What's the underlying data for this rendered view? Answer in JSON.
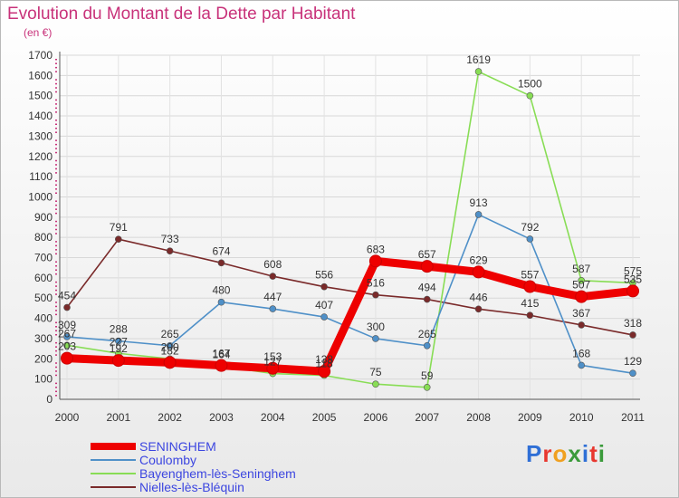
{
  "title": "Evolution du Montant de la Dette par Habitant",
  "subtitle": "(en €)",
  "brand": "Proxiti",
  "brand_colors": [
    "#2f6fd6",
    "#e8372f",
    "#f0a020",
    "#3a9a3a",
    "#2f6fd6",
    "#e8372f",
    "#3a9a3a"
  ],
  "chart_data": {
    "type": "line",
    "x": [
      "2000",
      "2001",
      "2002",
      "2003",
      "2004",
      "2005",
      "2006",
      "2007",
      "2008",
      "2009",
      "2010",
      "2011"
    ],
    "ylim": [
      0,
      1700
    ],
    "yticks": [
      0,
      100,
      200,
      300,
      400,
      500,
      600,
      700,
      800,
      900,
      1000,
      1100,
      1200,
      1300,
      1400,
      1500,
      1600,
      1700
    ],
    "grid": true,
    "legend_position": "bottom-left",
    "series": [
      {
        "name": "SENINGHEM",
        "color": "#ee0000",
        "values": [
          203,
          192,
          182,
          167,
          153,
          138,
          683,
          657,
          629,
          557,
          507,
          535
        ]
      },
      {
        "name": "Coulomby",
        "color": "#4f90c8",
        "values": [
          309,
          288,
          265,
          480,
          447,
          407,
          300,
          265,
          913,
          792,
          168,
          129
        ]
      },
      {
        "name": "Bayenghem-lès-Seninghem",
        "color": "#88dd55",
        "values": [
          267,
          227,
          200,
          164,
          127,
          118,
          75,
          59,
          1619,
          1500,
          587,
          575
        ]
      },
      {
        "name": "Nielles-lès-Bléquin",
        "color": "#7a2a2a",
        "values": [
          454,
          791,
          733,
          674,
          608,
          556,
          516,
          494,
          446,
          415,
          367,
          318
        ]
      }
    ]
  }
}
